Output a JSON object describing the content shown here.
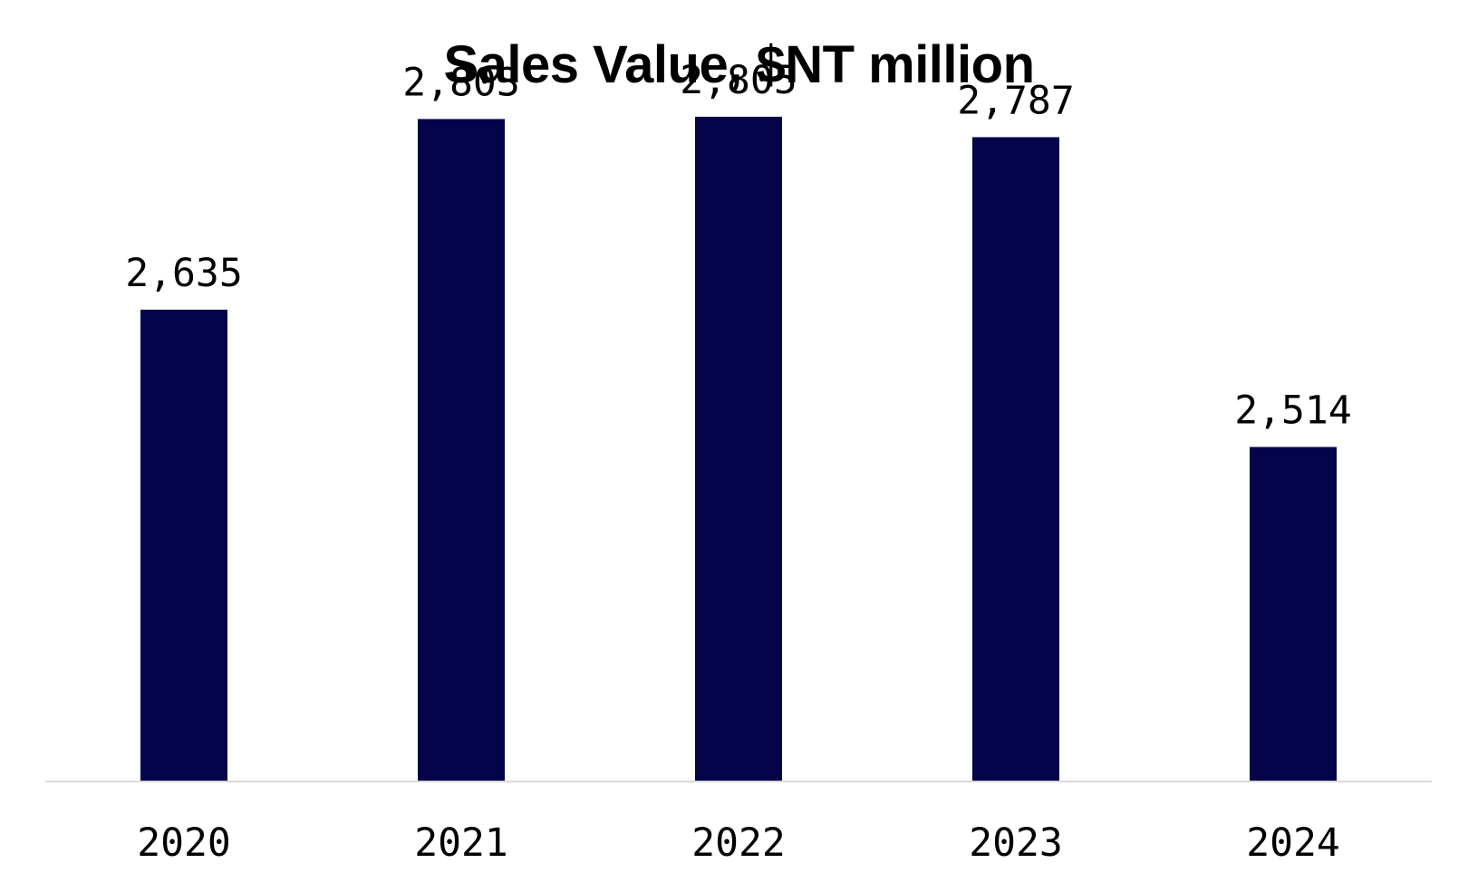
{
  "chart_data": {
    "type": "bar",
    "title": "Sales Value, $NT million",
    "categories": [
      "2020",
      "2021",
      "2022",
      "2023",
      "2024"
    ],
    "values": [
      2635,
      2803,
      2805,
      2787,
      2514
    ],
    "data_labels": [
      "2,635",
      "2,803",
      "2,805",
      "2,787",
      "2,514"
    ],
    "xlabel": "",
    "ylabel": "",
    "ylim": [
      2220,
      2860
    ],
    "grid": false,
    "legend": "none",
    "colors": {
      "bar": "#05034a",
      "axis": "#d9d9d9"
    }
  }
}
